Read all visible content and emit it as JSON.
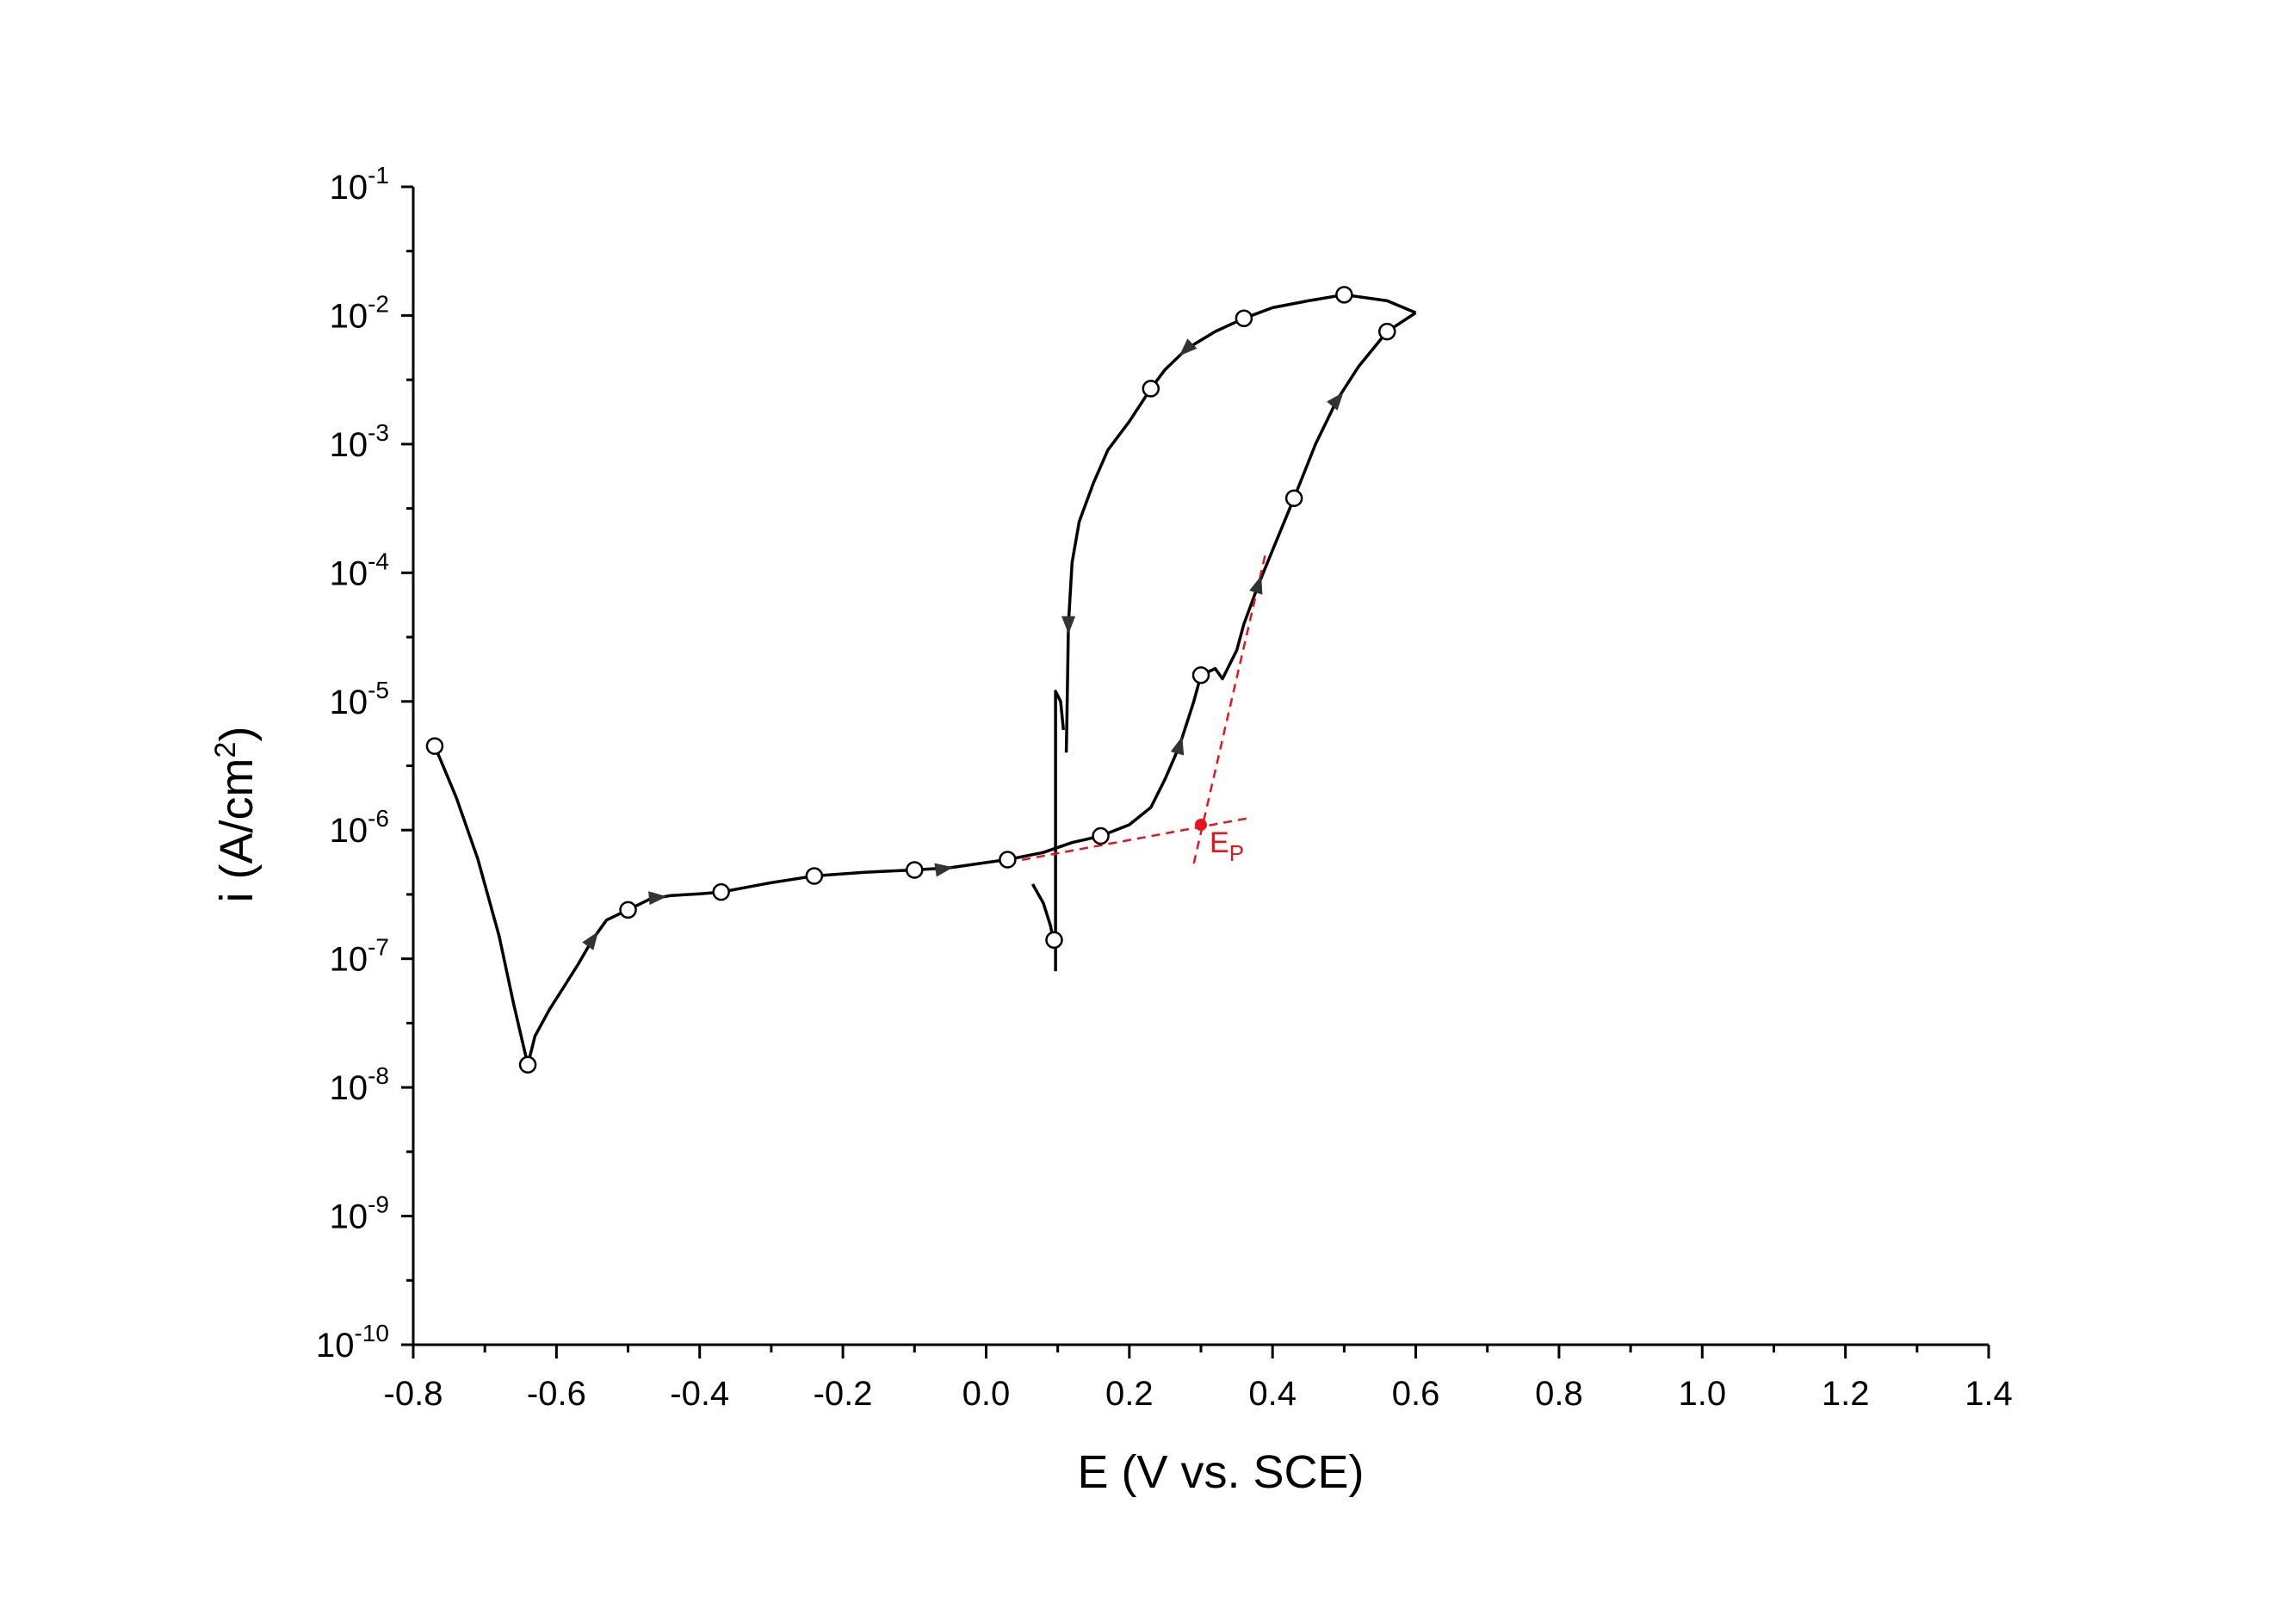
{
  "chart_data": {
    "type": "line",
    "title": "",
    "xlabel": "E (V vs. SCE)",
    "ylabel_prefix": "i (A/cm",
    "ylabel_sup": "2",
    "ylabel_suffix": ")",
    "xlim": [
      -0.8,
      1.4
    ],
    "ylim_exponent": [
      -10,
      -1
    ],
    "y_scale": "log",
    "x_ticks": [
      "-0.8",
      "-0.6",
      "-0.4",
      "-0.2",
      "0.0",
      "0.2",
      "0.4",
      "0.6",
      "0.8",
      "1.0",
      "1.2",
      "1.4"
    ],
    "x_tick_values": [
      -0.8,
      -0.6,
      -0.4,
      -0.2,
      0.0,
      0.2,
      0.4,
      0.6,
      0.8,
      1.0,
      1.2,
      1.4
    ],
    "y_ticks": [
      {
        "base": "10",
        "exp": "-10"
      },
      {
        "base": "10",
        "exp": "-9"
      },
      {
        "base": "10",
        "exp": "-8"
      },
      {
        "base": "10",
        "exp": "-7"
      },
      {
        "base": "10",
        "exp": "-6"
      },
      {
        "base": "10",
        "exp": "-5"
      },
      {
        "base": "10",
        "exp": "-4"
      },
      {
        "base": "10",
        "exp": "-3"
      },
      {
        "base": "10",
        "exp": "-2"
      },
      {
        "base": "10",
        "exp": "-1"
      }
    ],
    "grid": false,
    "line_color": "#000000",
    "annotation_color": "#e8141c",
    "series": [
      {
        "direction": "forward",
        "points": [
          [
            -0.77,
            4.5e-06
          ],
          [
            -0.74,
            1.8e-06
          ],
          [
            -0.71,
            6e-07
          ],
          [
            -0.68,
            1.5e-07
          ],
          [
            -0.66,
            4.5e-08
          ],
          [
            -0.64,
            1.5e-08
          ],
          [
            -0.63,
            2.5e-08
          ],
          [
            -0.61,
            4e-08
          ],
          [
            -0.59,
            6e-08
          ],
          [
            -0.57,
            9e-08
          ],
          [
            -0.55,
            1.4e-07
          ],
          [
            -0.53,
            2e-07
          ],
          [
            -0.5,
            2.4e-07
          ],
          [
            -0.47,
            2.9e-07
          ],
          [
            -0.44,
            3.1e-07
          ],
          [
            -0.4,
            3.2e-07
          ],
          [
            -0.37,
            3.3e-07
          ],
          [
            -0.3,
            3.9e-07
          ],
          [
            -0.24,
            4.4e-07
          ],
          [
            -0.17,
            4.7e-07
          ],
          [
            -0.1,
            4.9e-07
          ],
          [
            -0.05,
            5.1e-07
          ],
          [
            0.0,
            5.6e-07
          ],
          [
            0.03,
            5.9e-07
          ],
          [
            0.08,
            6.7e-07
          ],
          [
            0.12,
            8e-07
          ],
          [
            0.16,
            9e-07
          ],
          [
            0.2,
            1.1e-06
          ],
          [
            0.23,
            1.5e-06
          ],
          [
            0.25,
            2.5e-06
          ],
          [
            0.27,
            4.5e-06
          ],
          [
            0.29,
            1e-05
          ],
          [
            0.3,
            1.6e-05
          ],
          [
            0.32,
            1.8e-05
          ],
          [
            0.33,
            1.5e-05
          ],
          [
            0.35,
            2.5e-05
          ],
          [
            0.36,
            4e-05
          ],
          [
            0.38,
            8e-05
          ],
          [
            0.4,
            0.00015
          ],
          [
            0.43,
            0.00038
          ],
          [
            0.46,
            0.001
          ],
          [
            0.49,
            0.0022
          ],
          [
            0.52,
            0.004
          ],
          [
            0.56,
            0.0075
          ],
          [
            0.6,
            0.0105
          ]
        ]
      },
      {
        "direction": "reverse",
        "points": [
          [
            0.6,
            0.0105
          ],
          [
            0.56,
            0.013
          ],
          [
            0.5,
            0.0145
          ],
          [
            0.45,
            0.013
          ],
          [
            0.4,
            0.0115
          ],
          [
            0.36,
            0.0095
          ],
          [
            0.32,
            0.0075
          ],
          [
            0.28,
            0.0055
          ],
          [
            0.25,
            0.0038
          ],
          [
            0.23,
            0.0027
          ],
          [
            0.2,
            0.0015
          ],
          [
            0.17,
            0.0009
          ],
          [
            0.15,
            0.0005
          ],
          [
            0.13,
            0.00025
          ],
          [
            0.12,
            0.00012
          ],
          [
            0.115,
            4e-05
          ],
          [
            0.113,
            8e-06
          ],
          [
            0.112,
            4e-06
          ]
        ]
      },
      {
        "direction": "spike",
        "points": [
          [
            0.097,
            8e-08
          ],
          [
            0.097,
            1.2e-05
          ],
          [
            0.104,
            1e-05
          ],
          [
            0.108,
            6e-06
          ]
        ]
      },
      {
        "direction": "tail",
        "points": [
          [
            0.065,
            3.8e-07
          ],
          [
            0.08,
            2.7e-07
          ],
          [
            0.09,
            1.8e-07
          ],
          [
            0.096,
            1.2e-07
          ]
        ]
      }
    ],
    "markers": [
      [
        -0.77,
        4.5e-06
      ],
      [
        -0.64,
        1.5e-08
      ],
      [
        -0.5,
        2.4e-07
      ],
      [
        -0.37,
        3.3e-07
      ],
      [
        -0.24,
        4.4e-07
      ],
      [
        -0.1,
        4.9e-07
      ],
      [
        0.03,
        5.9e-07
      ],
      [
        0.095,
        1.4e-07
      ],
      [
        0.16,
        9e-07
      ],
      [
        0.3,
        1.6e-05
      ],
      [
        0.43,
        0.00038
      ],
      [
        0.56,
        0.0075
      ],
      [
        0.5,
        0.0145
      ],
      [
        0.36,
        0.0095
      ],
      [
        0.23,
        0.0027
      ]
    ],
    "arrows": [
      {
        "at": [
          -0.55,
          1.4e-07
        ],
        "to": [
          -0.53,
          2e-07
        ]
      },
      {
        "at": [
          -0.46,
          3e-07
        ],
        "to": [
          -0.43,
          3.1e-07
        ]
      },
      {
        "at": [
          -0.06,
          5e-07
        ],
        "to": [
          -0.03,
          5.3e-07
        ]
      },
      {
        "at": [
          0.27,
          4.5e-06
        ],
        "to": [
          0.28,
          7e-06
        ]
      },
      {
        "at": [
          0.38,
          8e-05
        ],
        "to": [
          0.39,
          0.00012
        ]
      },
      {
        "at": [
          0.49,
          0.0022
        ],
        "to": [
          0.51,
          0.003
        ]
      },
      {
        "at": [
          0.28,
          0.0055
        ],
        "to": [
          0.26,
          0.0043
        ]
      },
      {
        "at": [
          0.115,
          4e-05
        ],
        "to": [
          0.115,
          2.5e-05
        ]
      }
    ],
    "annotation": {
      "label_base": "E",
      "label_sub": "P",
      "point": [
        0.3,
        1.1e-06
      ],
      "passive_line": [
        [
          0.03,
          5.6e-07
        ],
        [
          0.37,
          1.25e-06
        ]
      ],
      "breakdown_line": [
        [
          0.29,
          5.5e-07
        ],
        [
          0.39,
          0.00014
        ]
      ]
    }
  }
}
